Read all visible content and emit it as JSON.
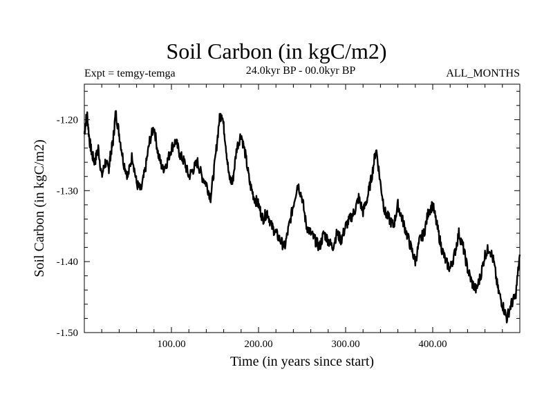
{
  "header": {
    "title": "Soil Carbon (in kgC/m2)",
    "expt": "Expt = temgy-temga",
    "range": "24.0kyr BP - 00.0kyr BP",
    "months": "ALL_MONTHS"
  },
  "chart_data": {
    "type": "line",
    "title": "Soil Carbon (in kgC/m2)",
    "xlabel": "Time (in years since start)",
    "ylabel": "Soil Carbon (in kgC/m2)",
    "xlim": [
      0,
      500
    ],
    "ylim": [
      -1.5,
      -1.15
    ],
    "x_ticks": [
      100,
      200,
      300,
      400
    ],
    "x_tick_labels": [
      "100.00",
      "200.00",
      "300.00",
      "400.00"
    ],
    "y_ticks": [
      -1.2,
      -1.3,
      -1.4,
      -1.5
    ],
    "y_tick_labels": [
      "-1.20",
      "-1.30",
      "-1.40",
      "-1.50"
    ],
    "series": [
      {
        "name": "Soil Carbon",
        "color": "#000000",
        "x": [
          0,
          3,
          6,
          9,
          12,
          16,
          20,
          24,
          28,
          30,
          33,
          36,
          40,
          45,
          50,
          55,
          60,
          65,
          70,
          75,
          80,
          85,
          90,
          95,
          100,
          105,
          110,
          115,
          120,
          125,
          130,
          135,
          140,
          145,
          150,
          155,
          158,
          162,
          166,
          170,
          175,
          180,
          185,
          190,
          195,
          200,
          205,
          210,
          215,
          220,
          225,
          230,
          235,
          240,
          245,
          250,
          255,
          260,
          265,
          270,
          275,
          280,
          285,
          290,
          295,
          300,
          305,
          310,
          315,
          320,
          325,
          330,
          335,
          340,
          345,
          350,
          355,
          360,
          365,
          370,
          375,
          380,
          385,
          390,
          395,
          400,
          405,
          410,
          415,
          420,
          425,
          430,
          435,
          440,
          445,
          450,
          455,
          460,
          465,
          470,
          475,
          480,
          485,
          490,
          495,
          500
        ],
        "values": [
          -1.22,
          -1.19,
          -1.23,
          -1.25,
          -1.26,
          -1.24,
          -1.28,
          -1.26,
          -1.27,
          -1.25,
          -1.23,
          -1.19,
          -1.22,
          -1.26,
          -1.28,
          -1.25,
          -1.29,
          -1.3,
          -1.27,
          -1.23,
          -1.21,
          -1.25,
          -1.27,
          -1.26,
          -1.24,
          -1.23,
          -1.25,
          -1.26,
          -1.28,
          -1.27,
          -1.26,
          -1.28,
          -1.29,
          -1.31,
          -1.26,
          -1.2,
          -1.19,
          -1.23,
          -1.28,
          -1.29,
          -1.24,
          -1.22,
          -1.25,
          -1.29,
          -1.31,
          -1.32,
          -1.34,
          -1.33,
          -1.35,
          -1.36,
          -1.37,
          -1.38,
          -1.35,
          -1.32,
          -1.29,
          -1.31,
          -1.35,
          -1.36,
          -1.37,
          -1.38,
          -1.36,
          -1.37,
          -1.38,
          -1.36,
          -1.37,
          -1.35,
          -1.34,
          -1.33,
          -1.31,
          -1.33,
          -1.31,
          -1.28,
          -1.24,
          -1.29,
          -1.33,
          -1.34,
          -1.35,
          -1.32,
          -1.34,
          -1.36,
          -1.38,
          -1.4,
          -1.37,
          -1.36,
          -1.33,
          -1.32,
          -1.35,
          -1.38,
          -1.4,
          -1.41,
          -1.39,
          -1.36,
          -1.38,
          -1.41,
          -1.43,
          -1.44,
          -1.42,
          -1.39,
          -1.38,
          -1.4,
          -1.44,
          -1.46,
          -1.48,
          -1.46,
          -1.45,
          -1.39
        ]
      }
    ]
  }
}
